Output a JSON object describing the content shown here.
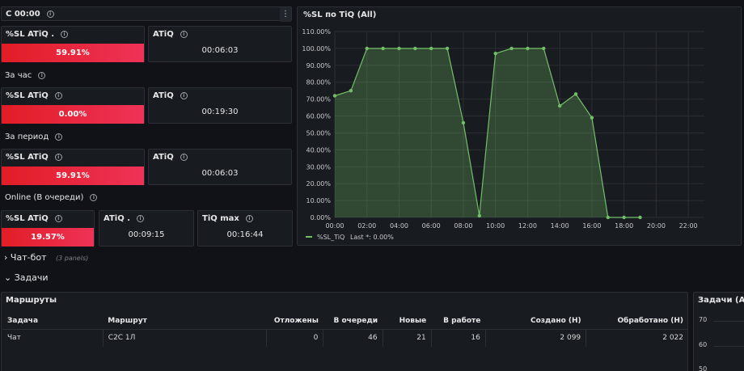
{
  "top_panel": {
    "title": "С 00:00"
  },
  "block1": {
    "sl": {
      "title": "%SL ATiQ .",
      "value": "59.91%"
    },
    "atiq": {
      "title": "ATiQ",
      "value": "00:06:03"
    }
  },
  "row_hour": {
    "label": "За час"
  },
  "block2": {
    "sl": {
      "title": "%SL ATiQ",
      "value": "0.00%"
    },
    "atiq": {
      "title": "ATiQ",
      "value": "00:19:30"
    }
  },
  "row_period": {
    "label": "За период"
  },
  "block3": {
    "sl": {
      "title": "%SL ATiQ",
      "value": "59.91%"
    },
    "atiq": {
      "title": "ATiQ",
      "value": "00:06:03"
    }
  },
  "row_online": {
    "label": "Online (В очереди)"
  },
  "block4": {
    "sl": {
      "title": "%SL ATiQ",
      "value": "19.57%"
    },
    "atiq": {
      "title": "ATiQ .",
      "value": "00:09:15"
    },
    "tiqmax": {
      "title": "TiQ max",
      "value": "00:16:44"
    }
  },
  "chat_section": {
    "title": "Чат-бот",
    "count": "(3 panels)"
  },
  "tasks_section": {
    "title": "Задачи"
  },
  "routes_panel": {
    "title": "Маршруты",
    "columns": [
      "Задача",
      "Маршрут",
      "Отложены",
      "В очереди",
      "Новые",
      "В работе",
      "Создано (Н)",
      "Обработано (Н)"
    ],
    "rows": [
      [
        "Чат",
        "С2С 1Л",
        "0",
        "46",
        "21",
        "16",
        "2 099",
        "2 022"
      ]
    ]
  },
  "tasks_panel": {
    "title": "Задачи (All)",
    "yticks": [
      "70",
      "60",
      "50"
    ]
  },
  "colors": {
    "accent_green": "#73bf69",
    "red_start": "#e11d26",
    "red_end": "#ef3257"
  },
  "chart_data": {
    "type": "line",
    "title": "%SL по TiQ (All)",
    "x": [
      "00:00",
      "01:00",
      "02:00",
      "03:00",
      "04:00",
      "05:00",
      "06:00",
      "07:00",
      "08:00",
      "09:00",
      "10:00",
      "11:00",
      "12:00",
      "13:00",
      "14:00",
      "15:00",
      "16:00",
      "17:00",
      "18:00",
      "19:00"
    ],
    "series": [
      {
        "name": "%SL_TiQ",
        "values": [
          72,
          75,
          100,
          100,
          100,
          100,
          100,
          100,
          56,
          1,
          97,
          100,
          100,
          100,
          66,
          73,
          59,
          0,
          0,
          0
        ]
      }
    ],
    "x_ticks": [
      "00:00",
      "02:00",
      "04:00",
      "06:00",
      "08:00",
      "10:00",
      "12:00",
      "14:00",
      "16:00",
      "18:00",
      "20:00",
      "22:00"
    ],
    "y_ticks": [
      "0.00%",
      "10.00%",
      "20.00%",
      "30.00%",
      "40.00%",
      "50.00%",
      "60.00%",
      "70.00%",
      "80.00%",
      "90.00%",
      "100.00%",
      "110.00%"
    ],
    "ylim": [
      0,
      110
    ],
    "xlim_hours": [
      0,
      23
    ],
    "grid": true,
    "legend": {
      "position": "bottom-left",
      "series": "%SL_TiQ",
      "stat": "Last *: 0.00%"
    }
  }
}
